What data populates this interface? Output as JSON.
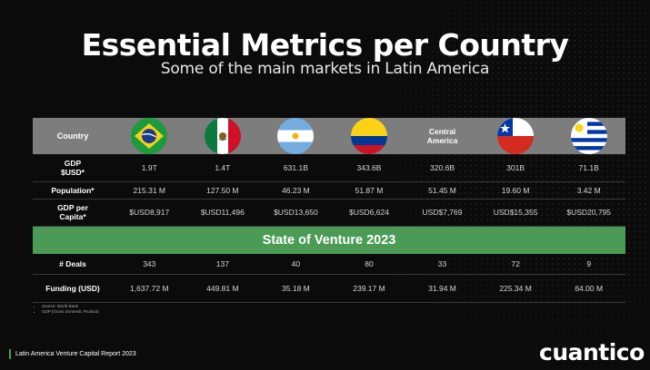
{
  "header": {
    "title": "Essential Metrics per Country",
    "subtitle": "Some of the main markets in Latin America"
  },
  "table": {
    "header_label": "Country",
    "countries": [
      {
        "name": "Brazil",
        "flag": "brazil-flag-icon"
      },
      {
        "name": "Mexico",
        "flag": "mexico-flag-icon"
      },
      {
        "name": "Argentina",
        "flag": "argentina-flag-icon"
      },
      {
        "name": "Colombia",
        "flag": "colombia-flag-icon"
      },
      {
        "name": "Central America",
        "flag": null
      },
      {
        "name": "Chile",
        "flag": "chile-flag-icon"
      },
      {
        "name": "Uruguay",
        "flag": "uruguay-flag-icon"
      }
    ],
    "central_america_label_1": "Central",
    "central_america_label_2": "America",
    "rows": {
      "gdp": {
        "label_1": "GDP",
        "label_2": "$USD*",
        "values": [
          "1.9T",
          "1.4T",
          "631.1B",
          "343.6B",
          "320.6B",
          "301B",
          "71.1B"
        ]
      },
      "population": {
        "label": "Population*",
        "values": [
          "215.31 M",
          "127.50 M",
          "46.23 M",
          "51.87 M",
          "51.45 M",
          "19.60 M",
          "3.42 M"
        ]
      },
      "gdp_per_capita": {
        "label_1": "GDP per",
        "label_2": "Capita*",
        "values": [
          "$USD8,917",
          "$USD11,496",
          "$USD13,650",
          "$USD6,624",
          "USD$7,769",
          "USD$15,355",
          "$USD20,795"
        ]
      }
    },
    "venture_title": "State of Venture 2023",
    "venture_rows": {
      "deals": {
        "label": "# Deals",
        "values": [
          "343",
          "137",
          "40",
          "80",
          "33",
          "72",
          "9"
        ]
      },
      "funding": {
        "label": "Funding (USD)",
        "values": [
          "1,637.72 M",
          "449.81 M",
          "35.18 M",
          "239.17 M",
          "31.94 M",
          "225.34 M",
          "64.00 M"
        ]
      }
    }
  },
  "footnotes": [
    "Source:  World Bank",
    "GDP (Gross Domestic Product)"
  ],
  "footer": {
    "report": "Latin America Venture Capital Report 2023",
    "logo": "cuantico"
  },
  "colors": {
    "accent": "#4b9a55",
    "header_gray": "#7d7d7d",
    "background": "#0b0b0b"
  }
}
